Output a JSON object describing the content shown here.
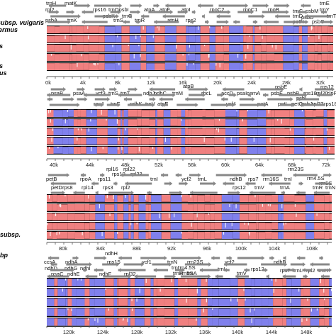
{
  "side_labels": [
    "subsp. vulgaris",
    "ermus",
    "s",
    "s",
    "us",
    "subsp.",
    "bp"
  ],
  "colors": {
    "exon": "#8080ec",
    "cns": "#f08080",
    "track_bg": "#000000",
    "gene_arrow": "#888888",
    "axis": "#555555"
  },
  "panels": [
    {
      "ticks": [
        "0k",
        "4k",
        "8k",
        "12k",
        "16k",
        "20k",
        "24k",
        "28k",
        "32k"
      ],
      "genes": [
        "trnH",
        "matK",
        "rps16",
        "trnQpsbI",
        "atpA",
        "atpF",
        "atpI",
        "rpoC2",
        "rpoC1",
        "rpoB",
        "trnC",
        "psbM",
        "trnE",
        "rpl2",
        "psbA",
        "trnK",
        "trnS",
        "psbK",
        "trnG",
        "trnR",
        "atpH",
        "rps2",
        "trnD",
        "trnY",
        "psbD",
        "petN",
        "psbC",
        "trnT"
      ]
    },
    {
      "ticks": [
        "40k",
        "44k",
        "48k",
        "52k",
        "56k",
        "60k",
        "64k",
        "68k",
        "72k"
      ],
      "genes": [
        "atpB",
        "psbE",
        "rps12",
        "psaB",
        "psaA",
        "ycf3",
        "trnS",
        "trnT",
        "ndhJ",
        "ndhC",
        "trnM",
        "rbcL",
        "accD",
        "psaI",
        "cemA",
        "psbF",
        "psbB",
        "psbL",
        "rps18",
        "rpl20",
        "clpP",
        "rps4",
        "trnF",
        "ndhK",
        "trnV",
        "atpE",
        "ycf4",
        "petA",
        "petL",
        "petG",
        "psbJ",
        "rpl33",
        "rps18"
      ]
    },
    {
      "ticks": [
        "80k",
        "84k",
        "88k",
        "92k",
        "96k",
        "100k",
        "104k",
        "108k"
      ],
      "genes": [
        "rpl16",
        "rpl22",
        "rrn23S",
        "rps19",
        "rpl23",
        "rrn4.5S",
        "rrn5S",
        "petB",
        "rpoA",
        "rps11",
        "rps3",
        "rpl2",
        "trnI",
        "ycf2",
        "trnL",
        "ndhB",
        "rps7",
        "rrn16S",
        "trnI",
        "trnA",
        "trnR",
        "trnN",
        "petD",
        "rps8",
        "rpl14",
        "rps12",
        "trnV"
      ]
    },
    {
      "ticks": [
        "120k",
        "124k",
        "128k",
        "132k",
        "136k",
        "140k",
        "144k",
        "148k"
      ],
      "genes": [
        "ndhH",
        "rrn23S",
        "rrn4.5S",
        "ccsA",
        "ndhA",
        "rps15",
        "ycf1",
        "trnN",
        "rrn5S",
        "trnI",
        "ycf2",
        "ndhB",
        "rps12",
        "ndhD",
        "ndhG",
        "ndhI",
        "ndhE",
        "psaC",
        "ndhF",
        "rpl32",
        "trnL",
        "trnR",
        "trnA",
        "trnV",
        "rps7",
        "trnL",
        "rpl2",
        "trnH"
      ]
    }
  ]
}
